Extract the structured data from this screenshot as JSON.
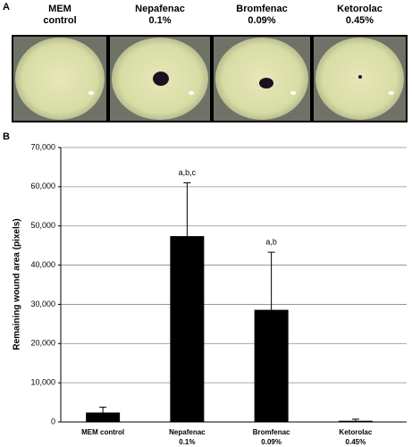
{
  "panel_a": {
    "label": "A",
    "images": [
      {
        "label_lines": [
          "MEM",
          "control"
        ]
      },
      {
        "label_lines": [
          "Nepafenac",
          "0.1%"
        ]
      },
      {
        "label_lines": [
          "Bromfenac",
          "0.09%"
        ]
      },
      {
        "label_lines": [
          "Ketorolac",
          "0.45%"
        ]
      }
    ]
  },
  "panel_b": {
    "label": "B"
  },
  "chart_data": {
    "type": "bar",
    "y_label": "Remaining wound area (pixels)",
    "categories": [
      [
        "MEM control"
      ],
      [
        "Nepafenac",
        "0.1%"
      ],
      [
        "Bromfenac",
        "0.09%"
      ],
      [
        "Ketorolac",
        "0.45%"
      ]
    ],
    "values": [
      2400,
      47400,
      28600,
      300
    ],
    "errors": [
      1400,
      13600,
      14700,
      400
    ],
    "significance": [
      null,
      "a,b,c",
      "a,b",
      null
    ],
    "color": "#000000",
    "ylim": [
      0,
      70000
    ],
    "yticks": [
      0,
      {
        "value": 10000,
        "label": "10,000"
      },
      {
        "value": 20000,
        "label": "20,000"
      },
      {
        "value": 30000,
        "label": "30,000"
      },
      {
        "value": 40000,
        "label": "40,000"
      },
      {
        "value": 50000,
        "label": "50,000"
      },
      {
        "value": 60000,
        "label": "60,000"
      },
      {
        "value": 70000,
        "label": "70,000"
      }
    ],
    "grid": true
  }
}
